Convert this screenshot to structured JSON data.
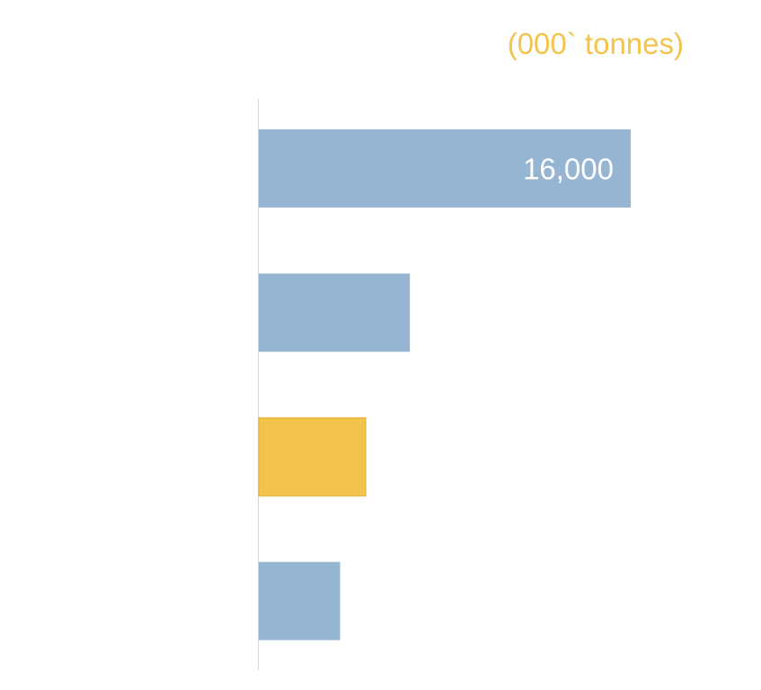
{
  "chart_data": {
    "type": "bar",
    "orientation": "horizontal",
    "unit_label": "(000` tonnes)",
    "categories": [
      "",
      "",
      "",
      ""
    ],
    "values": [
      16000,
      6500,
      4600,
      3500
    ],
    "bar_colors": [
      "#96b5d3",
      "#96b5d3",
      "#f2c44c",
      "#96b5d3"
    ],
    "data_labels": [
      "16,000",
      "",
      "",
      ""
    ],
    "xlim": [
      0,
      16000
    ],
    "grid": false,
    "legend": "none"
  },
  "colors": {
    "unit_label": "#f2c44c",
    "axis_line": "#d9d9d9",
    "data_label": "#ffffff",
    "highlight_border": "#e0aa2c"
  }
}
